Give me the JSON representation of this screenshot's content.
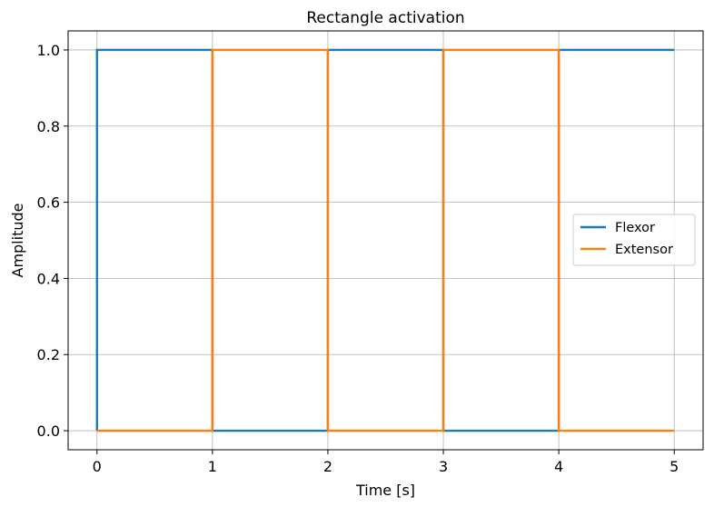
{
  "chart_data": {
    "type": "line",
    "title": "Rectangle activation",
    "xlabel": "Time [s]",
    "ylabel": "Amplitude",
    "xlim": [
      -0.25,
      5.25
    ],
    "ylim": [
      -0.05,
      1.05
    ],
    "xticks": [
      0,
      1,
      2,
      3,
      4,
      5
    ],
    "xtick_labels": [
      "0",
      "1",
      "2",
      "3",
      "4",
      "5"
    ],
    "yticks": [
      0.0,
      0.2,
      0.4,
      0.6,
      0.8,
      1.0
    ],
    "ytick_labels": [
      "0.0",
      "0.2",
      "0.4",
      "0.6",
      "0.8",
      "1.0"
    ],
    "grid": true,
    "legend_position": "center-right",
    "series": [
      {
        "name": "Flexor",
        "color": "#1f77b4",
        "x": [
          0,
          0,
          1,
          1,
          2,
          2,
          3,
          3,
          4,
          4,
          5
        ],
        "y": [
          0,
          1,
          1,
          0,
          0,
          1,
          1,
          0,
          0,
          1,
          1
        ]
      },
      {
        "name": "Extensor",
        "color": "#ff7f0e",
        "x": [
          0,
          1,
          1,
          2,
          2,
          3,
          3,
          4,
          4,
          5
        ],
        "y": [
          0,
          0,
          1,
          1,
          0,
          0,
          1,
          1,
          0,
          0
        ]
      }
    ]
  }
}
